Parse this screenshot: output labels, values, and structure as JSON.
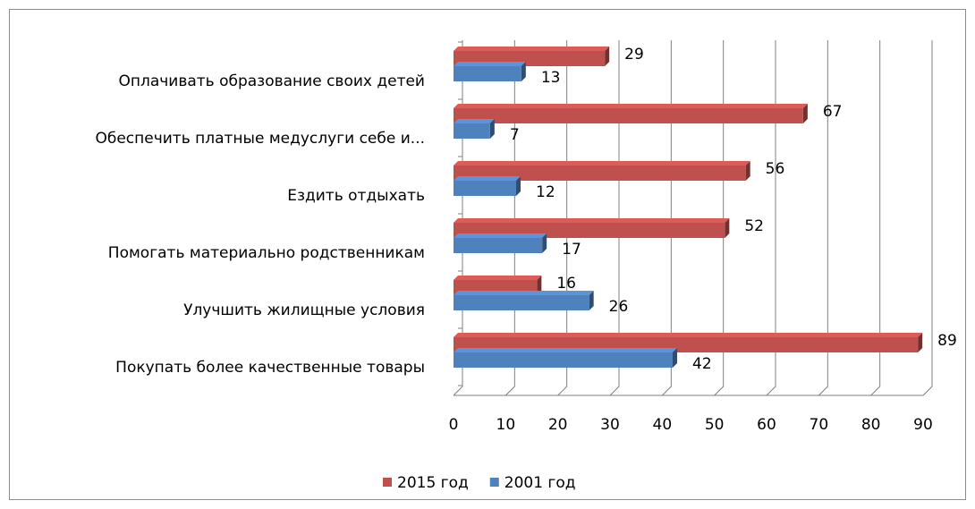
{
  "chart_data": {
    "type": "bar",
    "orientation": "horizontal",
    "categories": [
      "Оплачивать образование своих детей",
      "Обеспечить платные медуслуги себе и...",
      "Ездить отдыхать",
      "Помогать материально родственникам",
      "Улучшить жилищные условия",
      "Покупать более качественные товары"
    ],
    "series": [
      {
        "name": "2015 год",
        "color": "#c0504d",
        "values": [
          29,
          67,
          56,
          52,
          16,
          89
        ]
      },
      {
        "name": "2001 год",
        "color": "#4f81bd",
        "values": [
          13,
          7,
          12,
          17,
          26,
          42
        ]
      }
    ],
    "xlim": [
      0,
      90
    ],
    "xticks": [
      0,
      10,
      20,
      30,
      40,
      50,
      60,
      70,
      80,
      90
    ],
    "grid": true,
    "legend": "bottom"
  }
}
